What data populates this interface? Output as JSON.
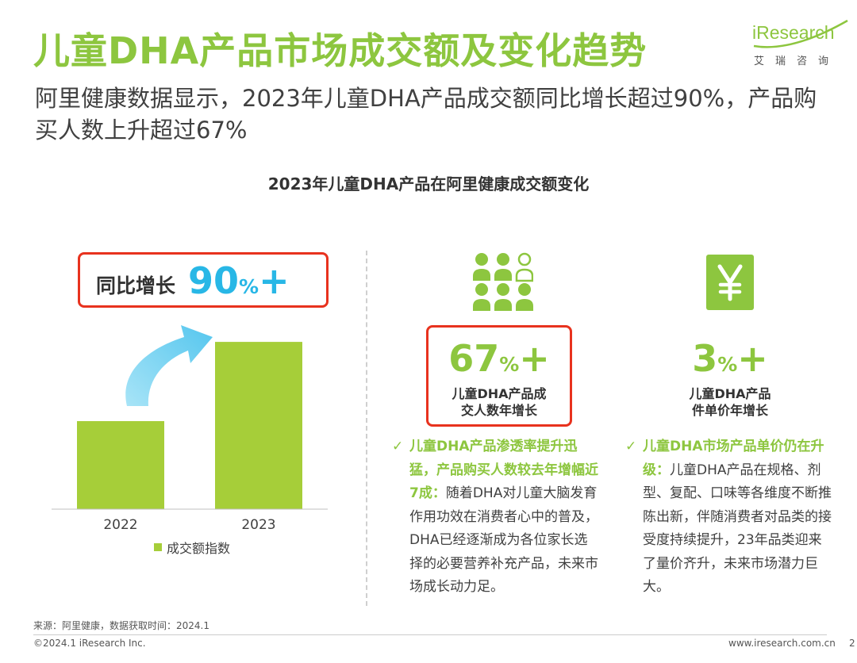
{
  "header": {
    "title": "儿童DHA产品市场成交额及变化趋势",
    "subtitle": "阿里健康数据显示，2023年儿童DHA产品成交额同比增长超过90%，产品购买人数上升超过67%"
  },
  "logo": {
    "wordmark": "iResearch",
    "chinese": "艾瑞咨询"
  },
  "chart_data": {
    "type": "bar",
    "title": "2023年儿童DHA产品在阿里健康成交额变化",
    "categories": [
      "2022",
      "2023"
    ],
    "series": [
      {
        "name": "成交额指数",
        "values": [
          100,
          190
        ]
      }
    ],
    "ylim": [
      0,
      200
    ],
    "grid": false,
    "legend": "bottom",
    "colors": {
      "bar": "#a6ce39",
      "arrow": "#6fcff0"
    },
    "annotation": {
      "label": "同比增长",
      "value": "90",
      "unit": "%",
      "suffix": "+"
    }
  },
  "stats": [
    {
      "icon": "people-group-icon",
      "value": "67",
      "unit": "%",
      "suffix": "+",
      "label": "儿童DHA产品成交人数年增长",
      "highlighted": true
    },
    {
      "icon": "yuan-icon",
      "value": "3",
      "unit": "%",
      "suffix": "+",
      "label": "儿童DHA产品件单价年增长",
      "highlighted": false
    }
  ],
  "bullets": [
    {
      "lead": "儿童DHA产品渗透率提升迅猛，产品购买人数较去年增幅近7成：",
      "text": "随着DHA对儿童大脑发育作用功效在消费者心中的普及，DHA已经逐渐成为各位家长选择的必要营养补充产品，未来市场成长动力足。"
    },
    {
      "lead": "儿童DHA市场产品单价仍在升级：",
      "text": "儿童DHA产品在规格、剂型、复配、口味等各维度不断推陈出新，伴随消费者对品类的接受度持续提升，23年品类迎来了量价齐升，未来市场潜力巨大。"
    }
  ],
  "footer": {
    "source": "来源：阿里健康，数据获取时间：2024.1",
    "copyright": "©2024.1 iResearch Inc.",
    "website": "www.iresearch.com.cn",
    "page": "2"
  },
  "colors": {
    "brand_green": "#8dc63f",
    "bar_green": "#a6ce39",
    "highlight_red": "#e8321e",
    "accent_blue": "#28b7e6"
  }
}
